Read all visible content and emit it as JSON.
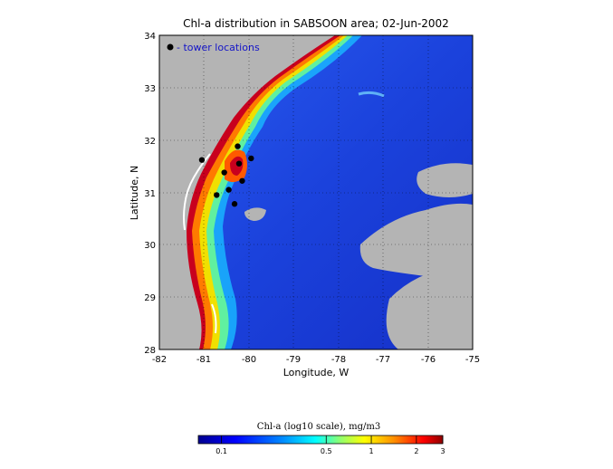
{
  "title": "Chl-a distribution in SABSOON area; 02-Jun-2002",
  "xlabel": "Longitude, W",
  "ylabel": "Latitude, N",
  "legend_label": "- tower locations",
  "x_ticks": [
    "-82",
    "-81",
    "-80",
    "-79",
    "-78",
    "-77",
    "-76",
    "-75"
  ],
  "y_ticks": [
    "34",
    "33",
    "32",
    "31",
    "30",
    "29",
    "28"
  ],
  "x_range": [
    -82,
    -75
  ],
  "y_range": [
    28,
    34
  ],
  "colorbar": {
    "label": "Chl-a (log10 scale), mg/m3",
    "ticks": [
      "0.1",
      "0.5",
      "1",
      "2",
      "3"
    ],
    "tick_values": [
      0.1,
      0.5,
      1,
      2,
      3
    ],
    "range": [
      0.07,
      3
    ]
  },
  "towers": [
    {
      "lon": -81.05,
      "lat": 31.62
    },
    {
      "lon": -80.25,
      "lat": 31.88
    },
    {
      "lon": -79.95,
      "lat": 31.65
    },
    {
      "lon": -80.22,
      "lat": 31.55
    },
    {
      "lon": -80.55,
      "lat": 31.38
    },
    {
      "lon": -80.15,
      "lat": 31.22
    },
    {
      "lon": -80.45,
      "lat": 31.05
    },
    {
      "lon": -80.72,
      "lat": 30.95
    },
    {
      "lon": -80.32,
      "lat": 30.78
    }
  ],
  "colors": {
    "land": "#b4b4b4",
    "ocean_deep": "#1d3fd9",
    "coastal_high": "#c8001e",
    "marker": "#000000",
    "legend_text": "#1414c8"
  }
}
